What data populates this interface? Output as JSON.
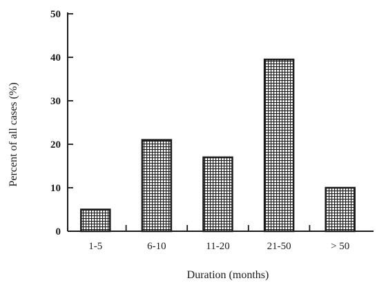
{
  "chart_data": {
    "type": "bar",
    "categories": [
      "1-5",
      "6-10",
      "11-20",
      "21-50",
      "> 50"
    ],
    "values": [
      5,
      21,
      17,
      39.5,
      10
    ],
    "title": "",
    "xlabel": "Duration (months)",
    "ylabel": "Percent of all cases (%)",
    "ylim": [
      0,
      50
    ],
    "yticks": [
      "0",
      "10",
      "20",
      "30",
      "40",
      "50"
    ],
    "grid": false,
    "legend": "none",
    "bar_fill": "crosshatch",
    "colors": {
      "ink": "#1a1a1a",
      "background": "#ffffff"
    }
  }
}
